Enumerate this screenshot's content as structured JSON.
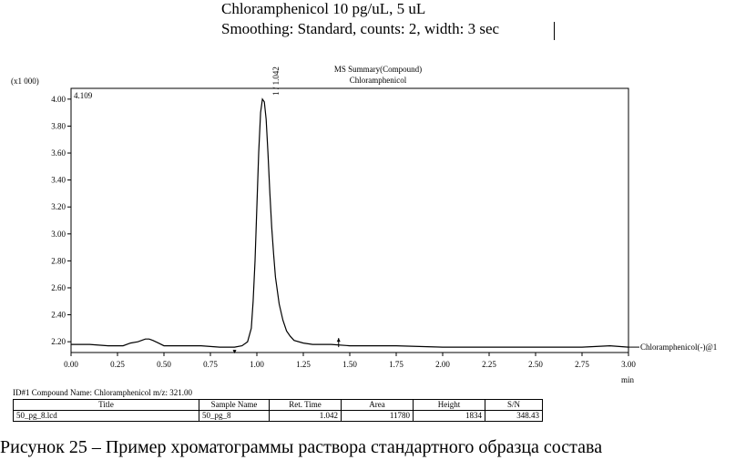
{
  "header": {
    "line1": "Chloramphenicol 10 pg/uL, 5 uL",
    "line2": "Smoothing: Standard, counts: 2, width: 3 sec"
  },
  "chart_data": {
    "type": "line",
    "title": "MS Summary(Compound)",
    "subtitle": "Chloramphenicol",
    "y_multiplier": "(x1 000)",
    "max_label": "4.109",
    "xlabel": "min",
    "xlim": [
      0.0,
      3.0
    ],
    "ylim": [
      2.12,
      4.08
    ],
    "x_ticks": [
      "0.00",
      "0.25",
      "0.50",
      "0.75",
      "1.00",
      "1.25",
      "1.50",
      "1.75",
      "2.00",
      "2.25",
      "2.50",
      "2.75",
      "3.00"
    ],
    "y_ticks": [
      "2.20",
      "2.40",
      "2.60",
      "2.80",
      "3.00",
      "3.20",
      "3.40",
      "3.60",
      "3.80",
      "4.00"
    ],
    "peak_label": "1 / 1.042",
    "series": [
      {
        "name": "Chloramphenicol(-)@1",
        "x": [
          0.0,
          0.1,
          0.2,
          0.28,
          0.32,
          0.36,
          0.4,
          0.42,
          0.44,
          0.47,
          0.5,
          0.6,
          0.7,
          0.8,
          0.88,
          0.92,
          0.95,
          0.97,
          0.98,
          0.99,
          1.0,
          1.01,
          1.02,
          1.03,
          1.04,
          1.05,
          1.06,
          1.07,
          1.08,
          1.09,
          1.1,
          1.12,
          1.14,
          1.16,
          1.18,
          1.2,
          1.25,
          1.3,
          1.4,
          1.5,
          1.75,
          2.0,
          2.25,
          2.5,
          2.75,
          2.9,
          3.0
        ],
        "y": [
          2.18,
          2.18,
          2.17,
          2.17,
          2.19,
          2.2,
          2.22,
          2.22,
          2.21,
          2.19,
          2.17,
          2.17,
          2.17,
          2.16,
          2.16,
          2.17,
          2.2,
          2.3,
          2.5,
          2.8,
          3.2,
          3.6,
          3.9,
          4.0,
          3.98,
          3.85,
          3.6,
          3.3,
          3.05,
          2.85,
          2.68,
          2.48,
          2.36,
          2.28,
          2.24,
          2.21,
          2.19,
          2.18,
          2.18,
          2.17,
          2.17,
          2.16,
          2.16,
          2.16,
          2.16,
          2.17,
          2.16
        ]
      }
    ],
    "markers": [
      {
        "x": 0.88,
        "label": ""
      },
      {
        "x": 1.44,
        "label": ""
      }
    ]
  },
  "result_table": {
    "caption": "ID#1 Compound Name: Chloramphenicol m/z: 321.00",
    "columns": [
      "Title",
      "Sample Name",
      "Ret. Time",
      "Area",
      "Height",
      "S/N"
    ],
    "rows": [
      [
        "50_pg_8.lcd",
        "50_pg_8",
        "1.042",
        "11780",
        "1834",
        "348.43"
      ]
    ]
  },
  "caption": "Рисунок 25 – Пример хроматограммы раствора стандартного образца состава"
}
